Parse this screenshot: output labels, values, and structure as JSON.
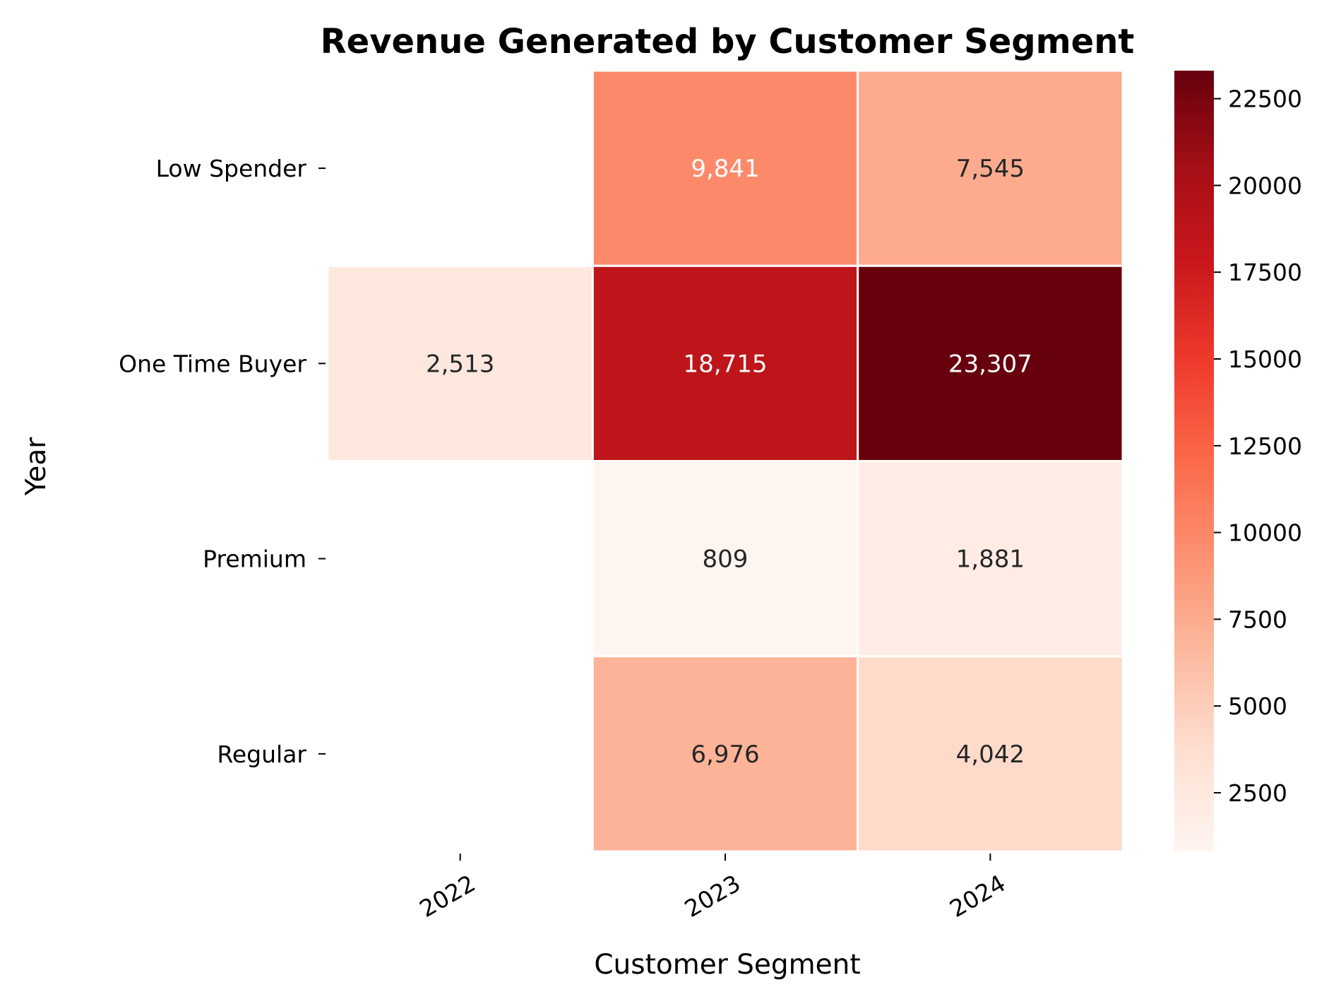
{
  "chart_data": {
    "type": "heatmap",
    "title": "Revenue Generated by Customer Segment",
    "xlabel": "Customer Segment",
    "ylabel": "Year",
    "x_categories": [
      "2022",
      "2023",
      "2024"
    ],
    "y_categories": [
      "Low Spender",
      "One Time Buyer",
      "Premium",
      "Regular"
    ],
    "values": [
      [
        null,
        9841,
        7545
      ],
      [
        2513,
        18715,
        23307
      ],
      [
        null,
        809,
        1881
      ],
      [
        null,
        6976,
        4042
      ]
    ],
    "value_labels": [
      [
        null,
        "9,841",
        "7,545"
      ],
      [
        "2,513",
        "18,715",
        "23,307"
      ],
      [
        null,
        "809",
        "1,881"
      ],
      [
        null,
        "6,976",
        "4,042"
      ]
    ],
    "colormap": "Reds",
    "color_range": [
      809,
      23307
    ],
    "colorbar": {
      "ticks": [
        2500,
        5000,
        7500,
        10000,
        12500,
        15000,
        17500,
        20000,
        22500
      ],
      "tick_labels": [
        "2500",
        "5000",
        "7500",
        "10000",
        "12500",
        "15000",
        "17500",
        "20000",
        "22500"
      ]
    }
  }
}
